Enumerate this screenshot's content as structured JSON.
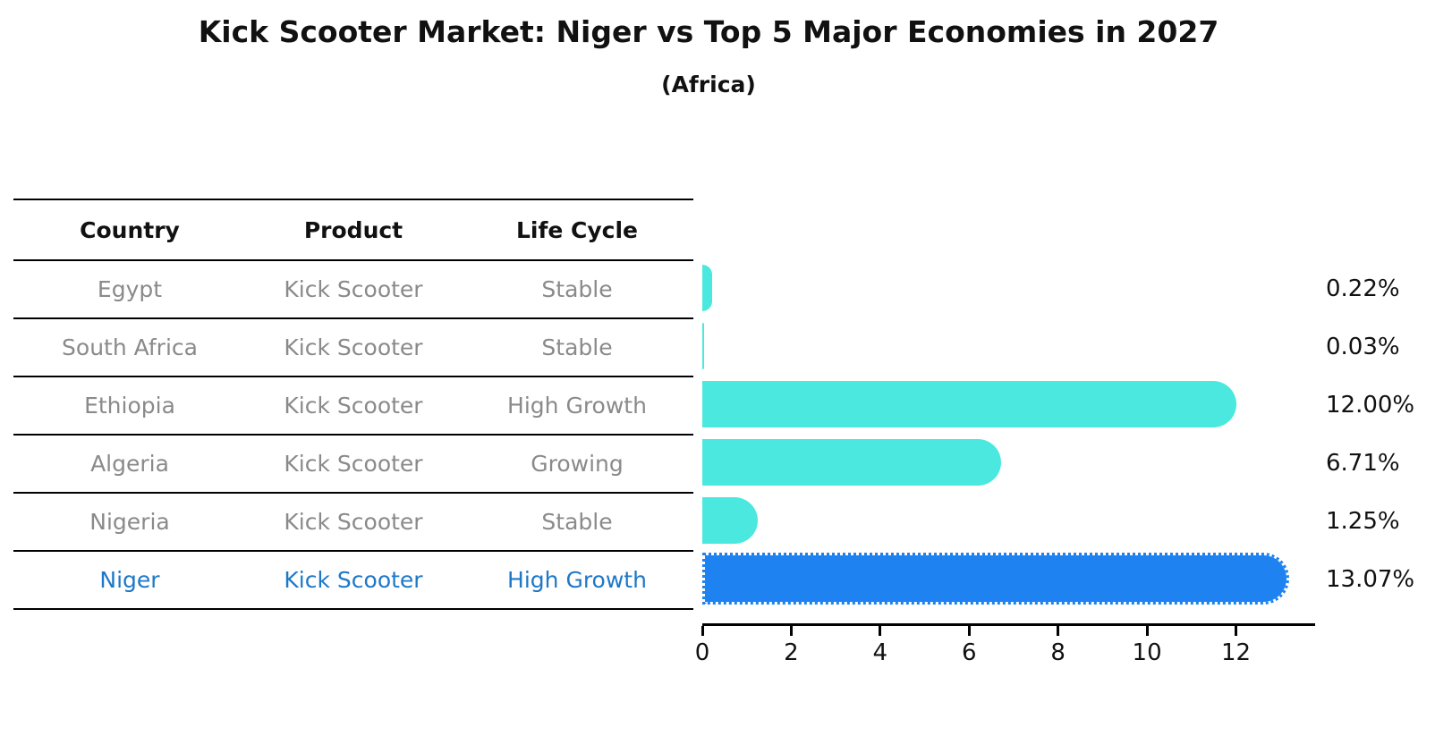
{
  "title": "Kick Scooter Market: Niger vs Top 5 Major Economies in 2027",
  "subtitle": "(Africa)",
  "table": {
    "headers": [
      "Country",
      "Product",
      "Life Cycle"
    ]
  },
  "rows": [
    {
      "country": "Egypt",
      "product": "Kick Scooter",
      "life_cycle": "Stable",
      "value": 0.22,
      "label": "0.22%"
    },
    {
      "country": "South Africa",
      "product": "Kick Scooter",
      "life_cycle": "Stable",
      "value": 0.03,
      "label": "0.03%"
    },
    {
      "country": "Ethiopia",
      "product": "Kick Scooter",
      "life_cycle": "High Growth",
      "value": 12.0,
      "label": "12.00%"
    },
    {
      "country": "Algeria",
      "product": "Kick Scooter",
      "life_cycle": "Growing",
      "value": 6.71,
      "label": "6.71%"
    },
    {
      "country": "Nigeria",
      "product": "Kick Scooter",
      "life_cycle": "Stable",
      "value": 1.25,
      "label": "1.25%"
    },
    {
      "country": "Niger",
      "product": "Kick Scooter",
      "life_cycle": "High Growth",
      "value": 13.07,
      "label": "13.07%"
    }
  ],
  "chart_data": {
    "type": "bar",
    "orientation": "horizontal",
    "title": "Kick Scooter Market: Niger vs Top 5 Major Economies in 2027",
    "subtitle": "(Africa)",
    "categories": [
      "Egypt",
      "South Africa",
      "Ethiopia",
      "Algeria",
      "Nigeria",
      "Niger"
    ],
    "values": [
      0.22,
      0.03,
      12.0,
      6.71,
      1.25,
      13.07
    ],
    "value_labels": [
      "0.22%",
      "0.03%",
      "12.00%",
      "6.71%",
      "1.25%",
      "13.07%"
    ],
    "xlim": [
      0,
      13.78
    ],
    "xticks": [
      0,
      2,
      4,
      6,
      8,
      10,
      12
    ],
    "grid": false,
    "legend": false,
    "bar_color": "#4ae8de",
    "highlight_color": "#1e82f0",
    "highlight_text_color": "#1e78c8",
    "highlight_index": 5,
    "highlight_category": "Niger"
  }
}
